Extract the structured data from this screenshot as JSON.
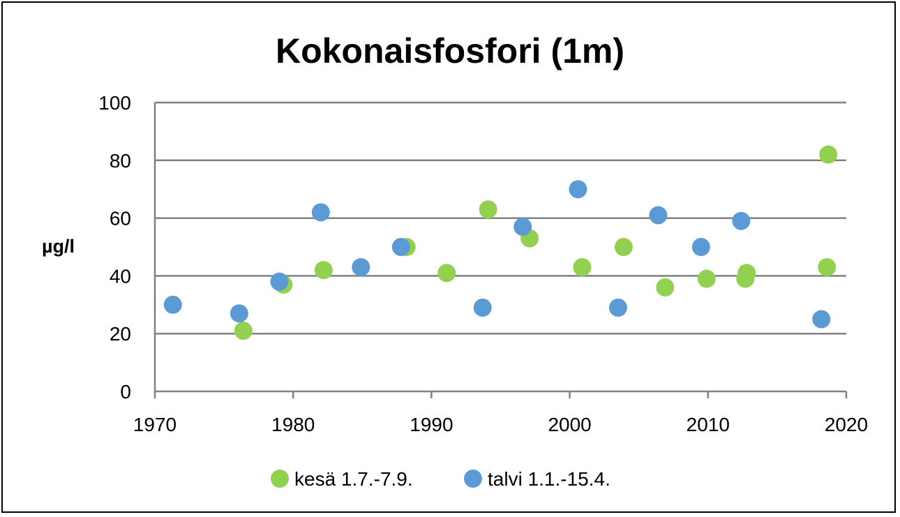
{
  "chart_data": {
    "type": "scatter",
    "title": "Kokonaisfosfori (1m)",
    "xlabel": "",
    "ylabel": "µg/l",
    "xlim": [
      1970,
      2020
    ],
    "ylim": [
      0,
      100
    ],
    "xticks": [
      1970,
      1980,
      1990,
      2000,
      2010,
      2020
    ],
    "yticks": [
      0,
      20,
      40,
      60,
      80,
      100
    ],
    "grid": "horizontal",
    "legend_position": "bottom",
    "series": [
      {
        "name": "kesä 1.7.-7.9.",
        "color": "#92d050",
        "x": [
          1976.4,
          1979.3,
          1982.2,
          1988.2,
          1991.1,
          1994.1,
          1997.1,
          2000.9,
          2003.9,
          2006.9,
          2009.9,
          2012.7,
          2012.8,
          2018.6,
          2018.7
        ],
        "y": [
          21,
          37,
          42,
          50,
          41,
          63,
          53,
          43,
          50,
          36,
          39,
          39,
          41,
          43,
          82
        ]
      },
      {
        "name": "talvi 1.1.-15.4.",
        "color": "#5b9bd5",
        "x": [
          1971.3,
          1976.1,
          1979.0,
          1982.0,
          1984.9,
          1987.8,
          1993.7,
          1996.6,
          2000.6,
          2003.5,
          2006.4,
          2009.5,
          2012.4,
          2018.2
        ],
        "y": [
          30,
          27,
          38,
          62,
          43,
          50,
          29,
          57,
          70,
          29,
          61,
          50,
          59,
          25
        ]
      }
    ]
  }
}
